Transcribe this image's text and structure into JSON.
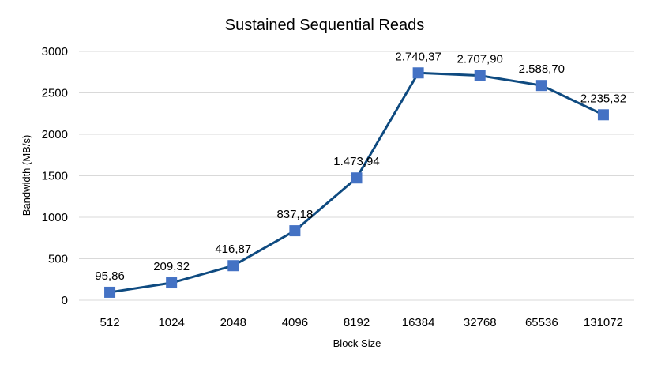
{
  "chart_data": {
    "type": "line",
    "title": "Sustained Sequential Reads",
    "xlabel": "Block Size",
    "ylabel": "Bandwidth (MB/s)",
    "categories": [
      "512",
      "1024",
      "2048",
      "4096",
      "8192",
      "16384",
      "32768",
      "65536",
      "131072"
    ],
    "series": [
      {
        "values": [
          95.86,
          209.32,
          416.87,
          837.18,
          1473.94,
          2740.37,
          2707.9,
          2588.7,
          2235.32
        ],
        "labels": [
          "95,86",
          "209,32",
          "416,87",
          "837,18",
          "1.473,94",
          "2.740,37",
          "2.707,90",
          "2.588,70",
          "2.235,32"
        ],
        "line_color": "#0e4a80",
        "marker_color": "#4472c4"
      }
    ],
    "ylim": [
      0,
      3000
    ],
    "yticks": [
      0,
      500,
      1000,
      1500,
      2000,
      2500,
      3000
    ],
    "grid": true,
    "legend": "none"
  }
}
